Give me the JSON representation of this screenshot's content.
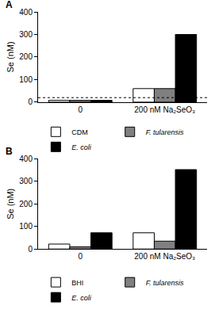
{
  "chart_data": [
    {
      "type": "bar",
      "title": "A",
      "categories": [
        "0",
        "200 nM Na₂SeO₃"
      ],
      "series": [
        {
          "name": "CDM",
          "color": "#ffffff",
          "values": [
            8,
            60
          ]
        },
        {
          "name": "F. tularensis",
          "color": "#808080",
          "values": [
            8,
            60
          ]
        },
        {
          "name": "E. coli",
          "color": "#000000",
          "values": [
            8,
            300
          ]
        }
      ],
      "ylabel": "Se (nM)",
      "ylim": [
        0,
        400
      ],
      "yticks": [
        0,
        100,
        200,
        300,
        400
      ],
      "grid": false,
      "legend": "bottom",
      "reference_line": 20
    },
    {
      "type": "bar",
      "title": "B",
      "categories": [
        "0",
        "200 nM Na₂SeO₃"
      ],
      "series": [
        {
          "name": "BHI",
          "color": "#ffffff",
          "values": [
            22,
            72
          ]
        },
        {
          "name": "F. tularensis",
          "color": "#808080",
          "values": [
            10,
            35
          ]
        },
        {
          "name": "E. coli",
          "color": "#000000",
          "values": [
            72,
            352
          ]
        }
      ],
      "ylabel": "Se (nM)",
      "ylim": [
        0,
        400
      ],
      "yticks": [
        0,
        100,
        200,
        300,
        400
      ],
      "grid": false,
      "legend": "bottom"
    }
  ]
}
